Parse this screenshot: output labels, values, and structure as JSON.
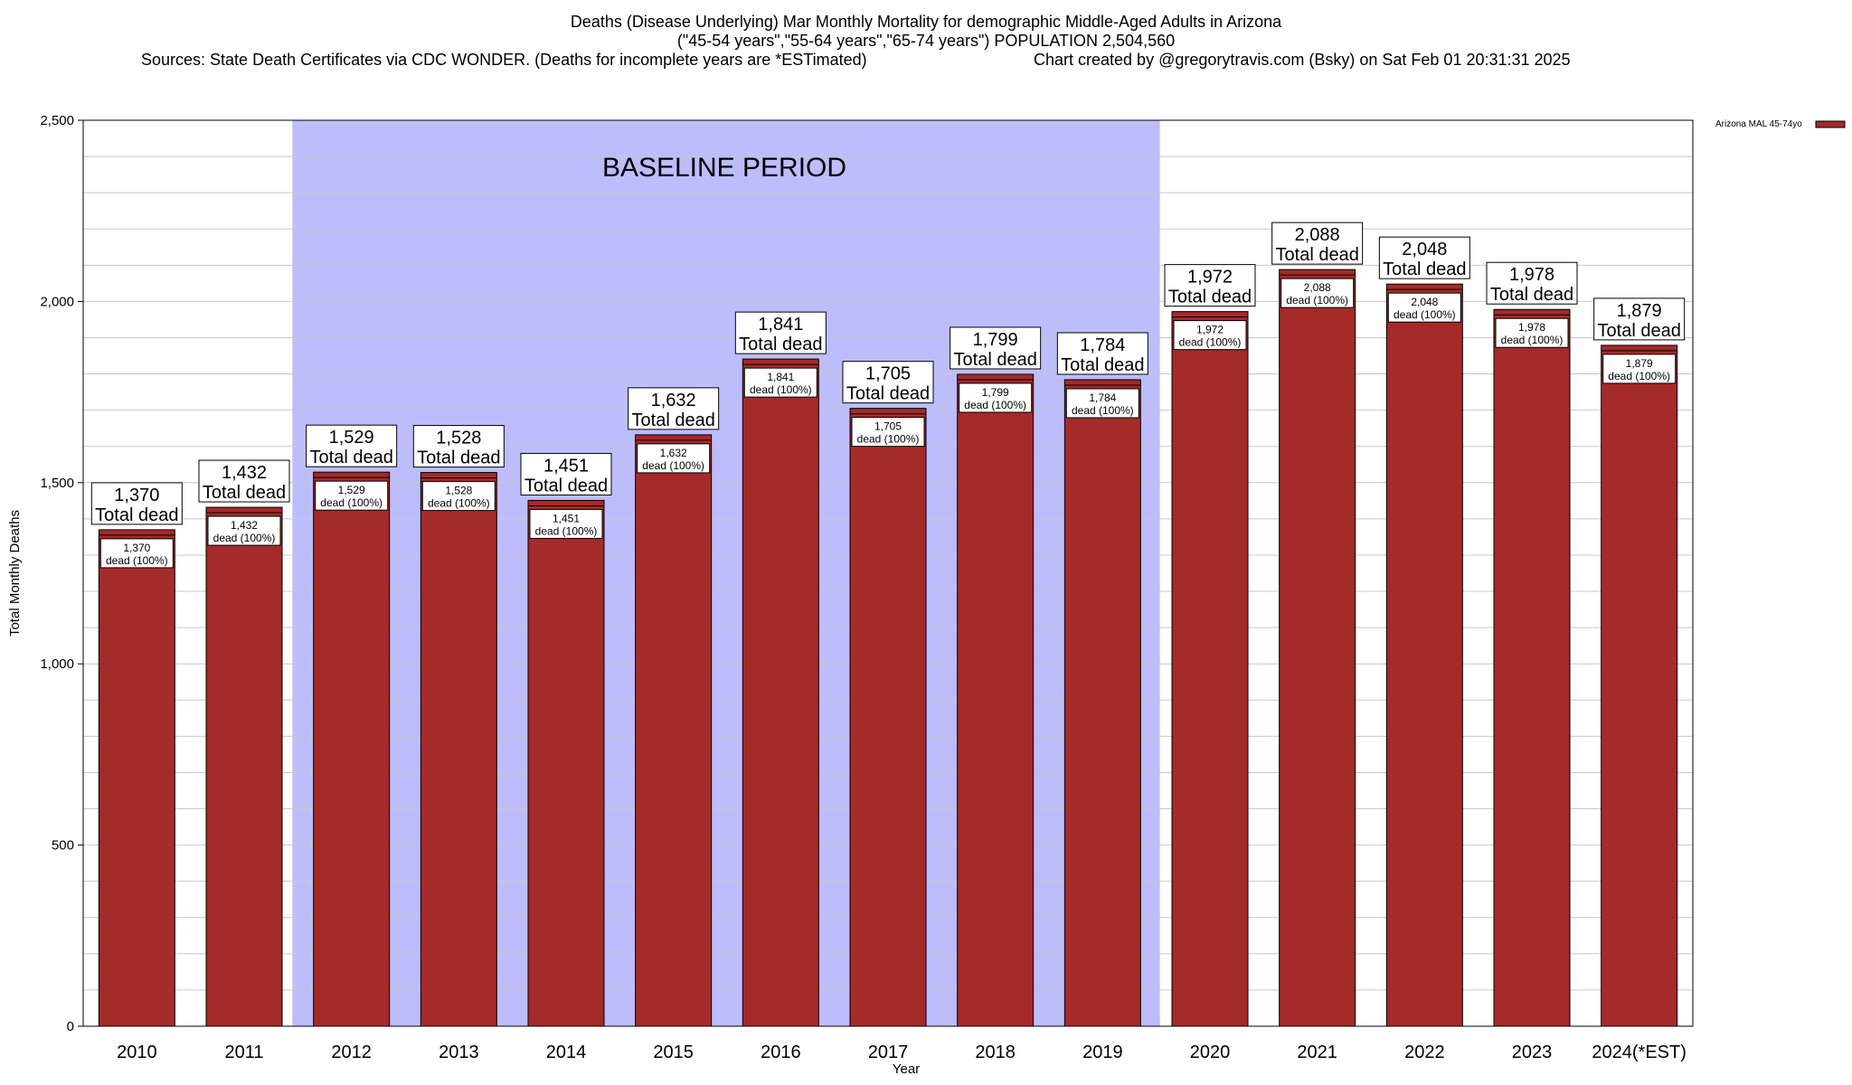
{
  "title": {
    "line1": "Deaths (Disease Underlying) Mar Monthly Mortality for demographic Middle-Aged Adults in Arizona",
    "line2": "(\"45-54 years\",\"55-64 years\",\"65-74 years\") POPULATION 2,504,560",
    "sources": "Sources: State Death Certificates via CDC WONDER. (Deaths for incomplete years are *ESTimated)",
    "credit": "Chart created by @gregorytravis.com (Bsky) on Sat Feb 01 20:31:31 2025"
  },
  "colors": {
    "bar": "#a52a2a",
    "baseline_band": "#bdbdfc",
    "grid": "#c8c8c8"
  },
  "chart_data": {
    "type": "bar",
    "categories": [
      "2010",
      "2011",
      "2012",
      "2013",
      "2014",
      "2015",
      "2016",
      "2017",
      "2018",
      "2019",
      "2020",
      "2021",
      "2022",
      "2023",
      "2024(*EST)"
    ],
    "series": [
      {
        "name": "Arizona MAL 45-74yo",
        "values": [
          1370,
          1432,
          1529,
          1528,
          1451,
          1632,
          1841,
          1705,
          1799,
          1784,
          1972,
          2088,
          2048,
          1978,
          1879
        ]
      }
    ],
    "value_labels": [
      "1,370",
      "1,432",
      "1,529",
      "1,528",
      "1,451",
      "1,632",
      "1,841",
      "1,705",
      "1,799",
      "1,784",
      "1,972",
      "2,088",
      "2,048",
      "1,978",
      "1,879"
    ],
    "top_label_suffix": "Total dead",
    "inner_label_suffix": "dead (100%)",
    "xlabel": "Year",
    "ylabel": "Total Monthly Deaths",
    "ylim": [
      0,
      2500
    ],
    "yticks": [
      0,
      500,
      1000,
      1500,
      2000,
      2500
    ],
    "ytick_labels": [
      "0",
      "500",
      "1,000",
      "1,500",
      "2,000",
      "2,500"
    ],
    "minor_ytick_step": 100,
    "grid": true,
    "legend_position": "top-right",
    "baseline_period": {
      "label": "BASELINE PERIOD",
      "start_category": "2012",
      "end_category": "2019"
    }
  }
}
